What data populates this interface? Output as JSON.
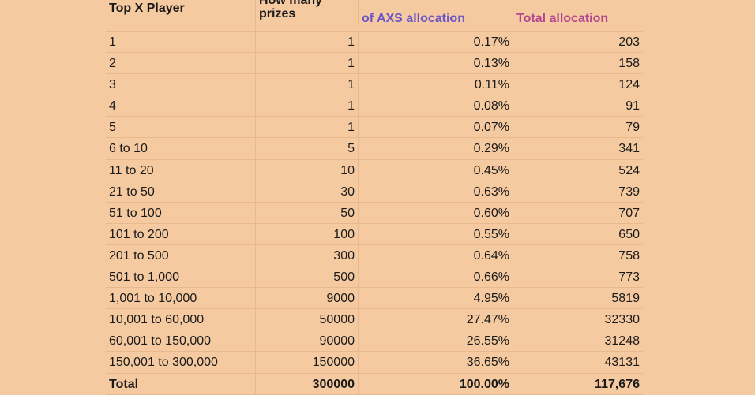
{
  "headers": {
    "top_x_player": "Top X Player",
    "how_many_prizes": "How many\nprizes",
    "axs_allocation": "of AXS allocation",
    "total_allocation": "Total allocation"
  },
  "colors": {
    "background": "#f6caa0",
    "axs_header": "#6b55c7",
    "total_header": "#b3478f"
  },
  "rows": [
    {
      "rank": "1",
      "prizes": "1",
      "pct": "0.17%",
      "total": "203"
    },
    {
      "rank": "2",
      "prizes": "1",
      "pct": "0.13%",
      "total": "158"
    },
    {
      "rank": "3",
      "prizes": "1",
      "pct": "0.11%",
      "total": "124"
    },
    {
      "rank": "4",
      "prizes": "1",
      "pct": "0.08%",
      "total": "91"
    },
    {
      "rank": "5",
      "prizes": "1",
      "pct": "0.07%",
      "total": "79"
    },
    {
      "rank": "6 to 10",
      "prizes": "5",
      "pct": "0.29%",
      "total": "341"
    },
    {
      "rank": "11 to 20",
      "prizes": "10",
      "pct": "0.45%",
      "total": "524"
    },
    {
      "rank": "21 to 50",
      "prizes": "30",
      "pct": "0.63%",
      "total": "739"
    },
    {
      "rank": "51 to 100",
      "prizes": "50",
      "pct": "0.60%",
      "total": "707"
    },
    {
      "rank": "101 to 200",
      "prizes": "100",
      "pct": "0.55%",
      "total": "650"
    },
    {
      "rank": "201 to 500",
      "prizes": "300",
      "pct": "0.64%",
      "total": "758"
    },
    {
      "rank": "501 to 1,000",
      "prizes": "500",
      "pct": "0.66%",
      "total": "773"
    },
    {
      "rank": "1,001 to 10,000",
      "prizes": "9000",
      "pct": "4.95%",
      "total": "5819"
    },
    {
      "rank": "10,001 to 60,000",
      "prizes": "50000",
      "pct": "27.47%",
      "total": "32330"
    },
    {
      "rank": "60,001 to 150,000",
      "prizes": "90000",
      "pct": "26.55%",
      "total": "31248"
    },
    {
      "rank": "150,001 to 300,000",
      "prizes": "150000",
      "pct": "36.65%",
      "total": "43131"
    }
  ],
  "total_row": {
    "rank": "Total",
    "prizes": "300000",
    "pct": "100.00%",
    "total": "117,676"
  }
}
